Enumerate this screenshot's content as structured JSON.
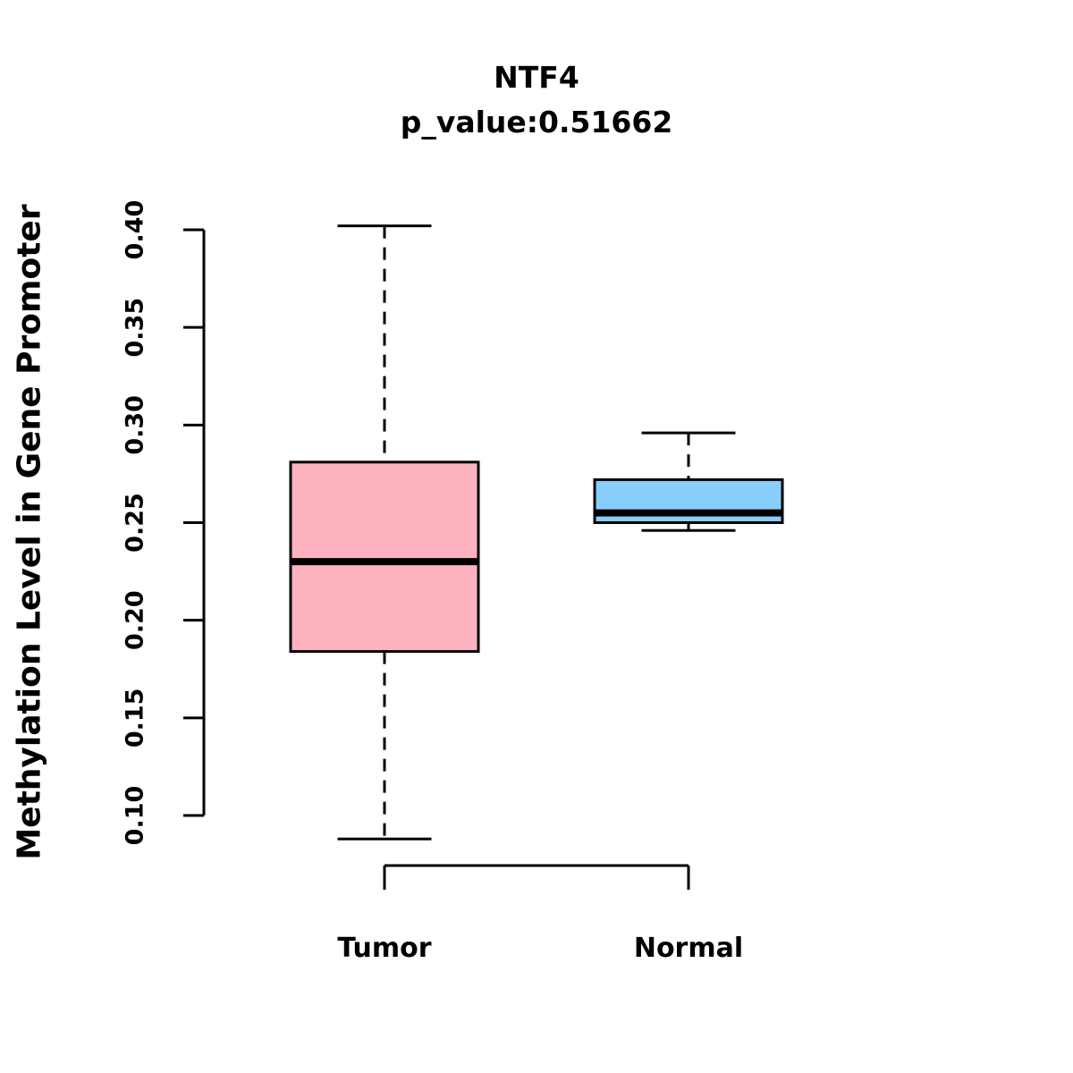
{
  "chart_data": {
    "type": "boxplot",
    "title": "NTF4",
    "subtitle": "p_value:0.51662",
    "ylabel": "Methylation Level in Gene Promoter",
    "categories": [
      "Tumor",
      "Normal"
    ],
    "ylim": [
      0.1,
      0.4
    ],
    "yticks": [
      "0.10",
      "0.15",
      "0.20",
      "0.25",
      "0.30",
      "0.35",
      "0.40"
    ],
    "grid": "off",
    "legend": "none",
    "series": [
      {
        "name": "Tumor",
        "color": "#FFB3C1",
        "whisker_low": 0.088,
        "q1": 0.184,
        "median": 0.23,
        "q3": 0.281,
        "whisker_high": 0.402
      },
      {
        "name": "Normal",
        "color": "#87CEFA",
        "whisker_low": 0.246,
        "q1": 0.25,
        "median": 0.255,
        "q3": 0.272,
        "whisker_high": 0.296
      }
    ]
  }
}
